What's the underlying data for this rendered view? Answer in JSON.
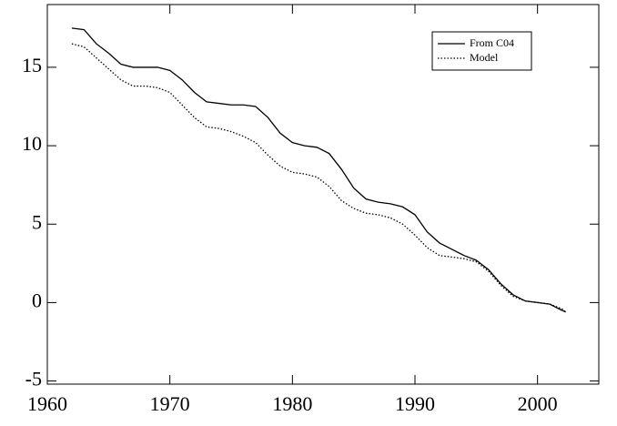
{
  "chart_data": {
    "type": "line",
    "x": [
      1962,
      1963,
      1964,
      1965,
      1966,
      1967,
      1968,
      1969,
      1970,
      1971,
      1972,
      1973,
      1974,
      1975,
      1976,
      1977,
      1978,
      1979,
      1980,
      1981,
      1982,
      1983,
      1984,
      1985,
      1986,
      1987,
      1988,
      1989,
      1990,
      1991,
      1992,
      1993,
      1994,
      1995,
      1996,
      1997,
      1998,
      1999,
      2000,
      2001,
      2002,
      2002.3
    ],
    "series": [
      {
        "name": "From C04",
        "color": "#000000",
        "style": "solid",
        "values": [
          17.5,
          17.4,
          16.5,
          15.9,
          15.2,
          15.0,
          15.0,
          15.0,
          14.8,
          14.2,
          13.4,
          12.8,
          12.7,
          12.6,
          12.6,
          12.5,
          11.8,
          10.8,
          10.2,
          10.0,
          9.9,
          9.5,
          8.5,
          7.3,
          6.6,
          6.4,
          6.3,
          6.1,
          5.6,
          4.5,
          3.8,
          3.4,
          3.0,
          2.7,
          2.1,
          1.2,
          0.5,
          0.1,
          0.0,
          -0.1,
          -0.5,
          -0.6
        ]
      },
      {
        "name": "Model",
        "color": "#000000",
        "style": "dotted",
        "values": [
          16.5,
          16.3,
          15.6,
          14.9,
          14.2,
          13.8,
          13.8,
          13.7,
          13.4,
          12.6,
          11.8,
          11.2,
          11.1,
          10.9,
          10.6,
          10.2,
          9.4,
          8.7,
          8.3,
          8.2,
          8.0,
          7.4,
          6.5,
          6.0,
          5.7,
          5.6,
          5.4,
          5.0,
          4.3,
          3.5,
          3.0,
          2.9,
          2.8,
          2.6,
          2.0,
          1.1,
          0.4,
          0.1,
          0.0,
          -0.1,
          -0.4,
          -0.6
        ]
      }
    ],
    "xlim": [
      1960,
      2005
    ],
    "xticks": [
      1960,
      1970,
      1980,
      1990,
      2000
    ],
    "ylim": [
      -5.2,
      19
    ],
    "yticks": [
      -5,
      0,
      5,
      10,
      15
    ]
  }
}
